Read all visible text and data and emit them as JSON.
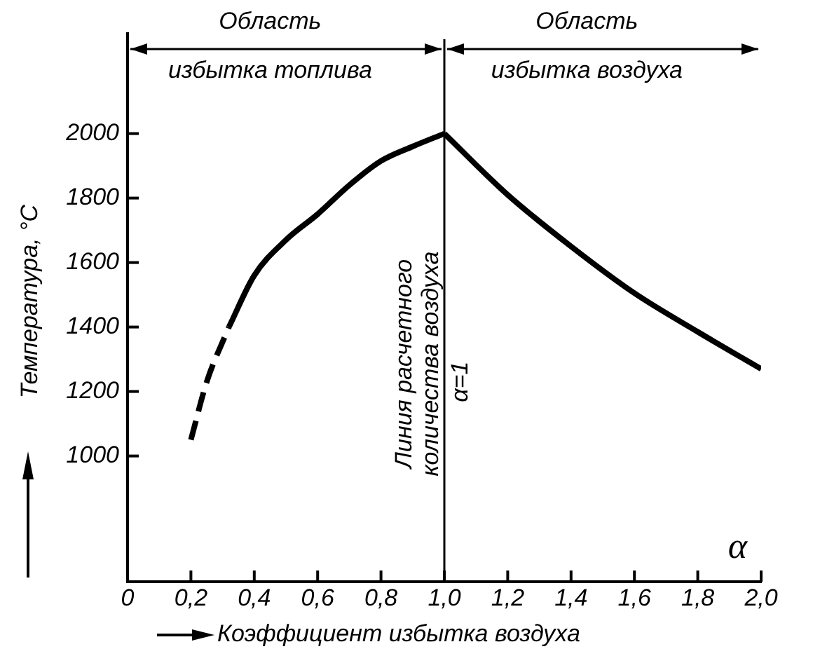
{
  "chart_data": {
    "type": "line",
    "xlabel": "Коэффициент избытка воздуха",
    "ylabel": "Температура, °C",
    "xlim": [
      0,
      2
    ],
    "xticks": [
      0,
      {
        "value": 0.2,
        "label": "0,2"
      },
      {
        "value": 0.4,
        "label": "0,4"
      },
      {
        "value": 0.6,
        "label": "0,6"
      },
      {
        "value": 0.8,
        "label": "0,8"
      },
      {
        "value": 1,
        "label": "1,0"
      },
      {
        "value": 1.2,
        "label": "1,2"
      },
      {
        "value": 1.4,
        "label": "1,4"
      },
      {
        "value": 1.6,
        "label": "1,6"
      },
      {
        "value": 1.8,
        "label": "1,8"
      },
      {
        "value": 2,
        "label": "2,0"
      }
    ],
    "ylim": [
      610,
      2310
    ],
    "yticks": [
      1000,
      1200,
      1400,
      1600,
      1800,
      2000
    ],
    "series": [
      {
        "color": "#000000",
        "line_style": "dashed",
        "x": [
          0.2,
          0.25,
          0.32
        ],
        "values": [
          1050,
          1230,
          1400
        ]
      },
      {
        "color": "#000000",
        "line_style": "solid",
        "x": [
          0.32,
          0.4,
          0.5,
          0.6,
          0.7,
          0.8,
          0.9,
          1.0
        ],
        "values": [
          1400,
          1560,
          1670,
          1750,
          1840,
          1915,
          1960,
          2000
        ]
      },
      {
        "color": "#000000",
        "line_style": "solid",
        "x": [
          1.0,
          1.2,
          1.4,
          1.6,
          1.8,
          2.0
        ],
        "values": [
          2000,
          1810,
          1650,
          1505,
          1385,
          1270
        ]
      }
    ],
    "ref_lines": [
      {
        "axis": "x",
        "value": 1,
        "label": "Линия расчетного количества воздуха",
        "color": "#000000"
      }
    ],
    "annotations": [
      {
        "text": "α=1",
        "x": 1,
        "y": 1230
      },
      "Область избытка топлива",
      "Область избытка воздуха",
      "α"
    ],
    "grid": false,
    "legend": false,
    "marker": "none"
  }
}
